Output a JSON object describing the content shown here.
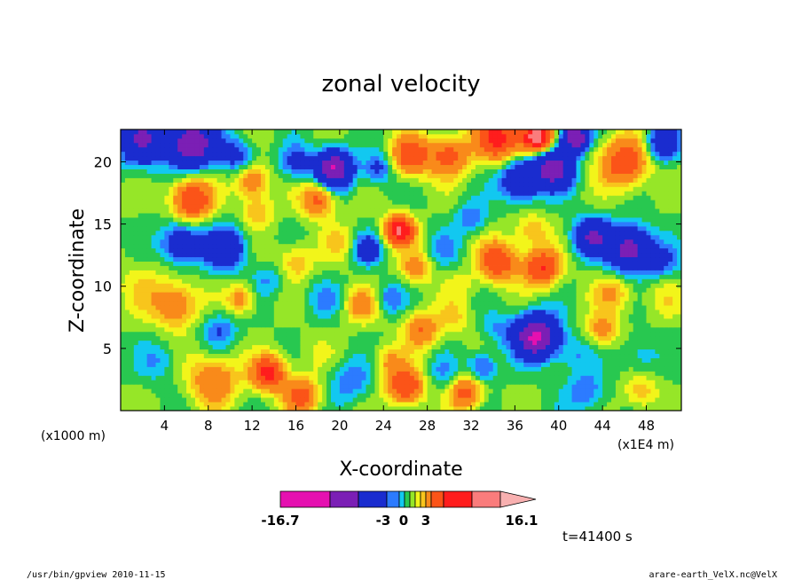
{
  "chart_data": {
    "type": "heatmap",
    "title": "zonal velocity",
    "xlabel": "X-coordinate",
    "ylabel": "Z-coordinate",
    "x_unit_left": "(x1000 m)",
    "x_unit_right": "(x1E4 m)",
    "x_ticks": [
      4,
      8,
      12,
      16,
      20,
      24,
      28,
      32,
      36,
      40,
      44,
      48
    ],
    "y_ticks": [
      5,
      10,
      15,
      20
    ],
    "xlim": [
      0,
      51.2
    ],
    "ylim": [
      0,
      22.6
    ],
    "colorbar": {
      "colors": [
        "#e510b0",
        "#7b1fb5",
        "#1a2ccf",
        "#2c7bff",
        "#12c8f0",
        "#28c850",
        "#96e628",
        "#f2f51a",
        "#f8c51c",
        "#f98a1a",
        "#fb5418",
        "#ff1d1d",
        "#fa7c7c",
        "#f8b0b0"
      ],
      "labels": [
        "-16.7",
        "-3",
        "0",
        "3",
        "16.1"
      ],
      "min": -16.7,
      "max": 16.1
    },
    "time_label": "t=41400 s",
    "footer_left": "/usr/bin/gpview   2010-11-15",
    "footer_right": "arare-earth_VelX.nc@VelX",
    "field_blobs": [
      {
        "x": 2.0,
        "z": 21.8,
        "r": 2.2,
        "v": -8
      },
      {
        "x": 6.5,
        "z": 21.5,
        "r": 2.0,
        "v": -12
      },
      {
        "x": 10.5,
        "z": 20.5,
        "r": 1.6,
        "v": -4
      },
      {
        "x": 6.5,
        "z": 17.0,
        "r": 1.8,
        "v": 8
      },
      {
        "x": 12.0,
        "z": 18.5,
        "r": 1.5,
        "v": 5
      },
      {
        "x": 5.5,
        "z": 13.5,
        "r": 1.8,
        "v": -6
      },
      {
        "x": 9.5,
        "z": 13.0,
        "r": 1.8,
        "v": -7
      },
      {
        "x": 12.5,
        "z": 16.0,
        "r": 1.4,
        "v": 3
      },
      {
        "x": 2.0,
        "z": 10.0,
        "r": 2.5,
        "v": 1.5
      },
      {
        "x": 5.0,
        "z": 8.5,
        "r": 2.0,
        "v": 5
      },
      {
        "x": 9.0,
        "z": 6.5,
        "r": 1.6,
        "v": -3
      },
      {
        "x": 3.5,
        "z": 4.0,
        "r": 1.8,
        "v": -2
      },
      {
        "x": 8.5,
        "z": 2.5,
        "r": 2.2,
        "v": 5
      },
      {
        "x": 13.5,
        "z": 3.0,
        "r": 1.5,
        "v": 9
      },
      {
        "x": 16.0,
        "z": 20.0,
        "r": 1.5,
        "v": -4
      },
      {
        "x": 18.0,
        "z": 17.0,
        "r": 1.5,
        "v": 6
      },
      {
        "x": 16.0,
        "z": 12.0,
        "r": 1.6,
        "v": 3
      },
      {
        "x": 20.0,
        "z": 13.5,
        "r": 1.6,
        "v": 2
      },
      {
        "x": 18.5,
        "z": 9.0,
        "r": 1.6,
        "v": -2
      },
      {
        "x": 22.0,
        "z": 8.5,
        "r": 1.5,
        "v": 4
      },
      {
        "x": 17.5,
        "z": 4.5,
        "r": 1.8,
        "v": 1
      },
      {
        "x": 21.0,
        "z": 2.5,
        "r": 1.8,
        "v": -3
      },
      {
        "x": 16.5,
        "z": 1.2,
        "r": 1.6,
        "v": 6
      },
      {
        "x": 19.5,
        "z": 19.5,
        "r": 1.6,
        "v": -12
      },
      {
        "x": 23.5,
        "z": 19.5,
        "r": 1.4,
        "v": -4
      },
      {
        "x": 26.5,
        "z": 20.5,
        "r": 1.8,
        "v": 7
      },
      {
        "x": 30.0,
        "z": 20.5,
        "r": 1.8,
        "v": 6
      },
      {
        "x": 34.5,
        "z": 22.0,
        "r": 2.0,
        "v": 9
      },
      {
        "x": 36.5,
        "z": 18.5,
        "r": 1.7,
        "v": -8
      },
      {
        "x": 39.5,
        "z": 19.5,
        "r": 1.8,
        "v": -10
      },
      {
        "x": 38.0,
        "z": 22.0,
        "r": 1.3,
        "v": 14
      },
      {
        "x": 41.5,
        "z": 22.0,
        "r": 1.2,
        "v": -12
      },
      {
        "x": 46.0,
        "z": 20.0,
        "r": 2.2,
        "v": 7
      },
      {
        "x": 49.5,
        "z": 21.5,
        "r": 1.5,
        "v": -6
      },
      {
        "x": 25.5,
        "z": 14.5,
        "r": 1.3,
        "v": 11
      },
      {
        "x": 29.5,
        "z": 13.0,
        "r": 1.5,
        "v": -2
      },
      {
        "x": 27.0,
        "z": 11.5,
        "r": 1.4,
        "v": 4
      },
      {
        "x": 32.0,
        "z": 15.5,
        "r": 1.4,
        "v": -3
      },
      {
        "x": 34.5,
        "z": 12.0,
        "r": 1.8,
        "v": 7
      },
      {
        "x": 38.5,
        "z": 11.5,
        "r": 1.6,
        "v": 8
      },
      {
        "x": 37.5,
        "z": 14.5,
        "r": 1.5,
        "v": 3
      },
      {
        "x": 43.0,
        "z": 14.0,
        "r": 1.6,
        "v": -8
      },
      {
        "x": 46.5,
        "z": 13.0,
        "r": 2.0,
        "v": -10
      },
      {
        "x": 49.5,
        "z": 12.0,
        "r": 1.5,
        "v": -3
      },
      {
        "x": 45.0,
        "z": 9.5,
        "r": 1.8,
        "v": 3
      },
      {
        "x": 49.5,
        "z": 9.0,
        "r": 1.8,
        "v": 1.5
      },
      {
        "x": 38.0,
        "z": 6.0,
        "r": 1.9,
        "v": -13
      },
      {
        "x": 34.5,
        "z": 6.5,
        "r": 1.5,
        "v": -2
      },
      {
        "x": 41.5,
        "z": 4.5,
        "r": 1.6,
        "v": -2
      },
      {
        "x": 44.0,
        "z": 6.5,
        "r": 1.4,
        "v": 4
      },
      {
        "x": 47.5,
        "z": 4.5,
        "r": 1.7,
        "v": -2
      },
      {
        "x": 42.5,
        "z": 1.5,
        "r": 1.8,
        "v": -3
      },
      {
        "x": 47.5,
        "z": 1.5,
        "r": 1.5,
        "v": 3
      },
      {
        "x": 27.5,
        "z": 6.5,
        "r": 1.6,
        "v": 5
      },
      {
        "x": 30.5,
        "z": 7.5,
        "r": 1.5,
        "v": 2
      },
      {
        "x": 24.5,
        "z": 4.0,
        "r": 1.4,
        "v": 3
      },
      {
        "x": 26.0,
        "z": 2.0,
        "r": 1.6,
        "v": 8
      },
      {
        "x": 29.5,
        "z": 3.0,
        "r": 1.5,
        "v": -2
      },
      {
        "x": 31.5,
        "z": 1.5,
        "r": 1.5,
        "v": 6
      },
      {
        "x": 33.0,
        "z": 3.5,
        "r": 1.3,
        "v": -4
      },
      {
        "x": 22.5,
        "z": 13.0,
        "r": 1.3,
        "v": -5
      },
      {
        "x": 24.5,
        "z": 9.0,
        "r": 1.3,
        "v": -3
      },
      {
        "x": 31.0,
        "z": 10.0,
        "r": 1.4,
        "v": 1.5
      },
      {
        "x": 13.5,
        "z": 10.5,
        "r": 1.4,
        "v": -2
      },
      {
        "x": 11.0,
        "z": 9.0,
        "r": 1.3,
        "v": 4
      }
    ]
  }
}
